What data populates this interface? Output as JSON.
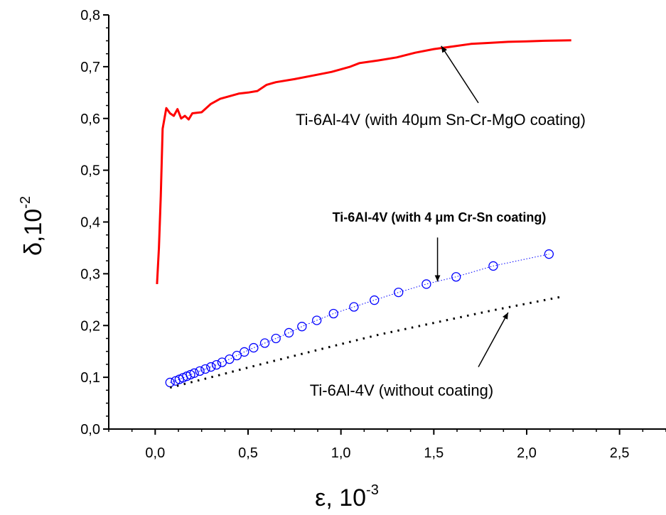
{
  "chart_data": {
    "type": "line",
    "x_axis": {
      "symbol": "ε, 10",
      "exponent": "-3",
      "xlim": [
        -0.25,
        2.75
      ],
      "ticks": [
        "0,0",
        "0,5",
        "1,0",
        "1,5",
        "2,0",
        "2,5"
      ],
      "tick_values": [
        0,
        0.5,
        1.0,
        1.5,
        2.0,
        2.5
      ]
    },
    "y_axis": {
      "symbol": "δ,10",
      "exponent": "-2",
      "ylim": [
        0,
        0.8
      ],
      "ticks": [
        "0,0",
        "0,1",
        "0,2",
        "0,3",
        "0,4",
        "0,5",
        "0,6",
        "0,7",
        "0,8"
      ],
      "tick_values": [
        0,
        0.1,
        0.2,
        0.3,
        0.4,
        0.5,
        0.6,
        0.7,
        0.8
      ]
    },
    "series": [
      {
        "name": "Ti-6Al-4V (with 40μm Sn-Cr-MgO coating)",
        "style": "solid-line",
        "color": "#ff0000",
        "points": [
          [
            0.01,
            0.28
          ],
          [
            0.02,
            0.35
          ],
          [
            0.03,
            0.45
          ],
          [
            0.04,
            0.58
          ],
          [
            0.06,
            0.62
          ],
          [
            0.08,
            0.61
          ],
          [
            0.1,
            0.605
          ],
          [
            0.12,
            0.618
          ],
          [
            0.14,
            0.6
          ],
          [
            0.16,
            0.605
          ],
          [
            0.18,
            0.598
          ],
          [
            0.2,
            0.61
          ],
          [
            0.25,
            0.612
          ],
          [
            0.3,
            0.628
          ],
          [
            0.35,
            0.638
          ],
          [
            0.4,
            0.643
          ],
          [
            0.45,
            0.648
          ],
          [
            0.5,
            0.65
          ],
          [
            0.55,
            0.653
          ],
          [
            0.6,
            0.665
          ],
          [
            0.65,
            0.67
          ],
          [
            0.75,
            0.676
          ],
          [
            0.85,
            0.683
          ],
          [
            0.95,
            0.69
          ],
          [
            1.05,
            0.7
          ],
          [
            1.1,
            0.707
          ],
          [
            1.2,
            0.712
          ],
          [
            1.3,
            0.718
          ],
          [
            1.4,
            0.727
          ],
          [
            1.5,
            0.734
          ],
          [
            1.6,
            0.739
          ],
          [
            1.7,
            0.744
          ],
          [
            1.8,
            0.746
          ],
          [
            1.9,
            0.748
          ],
          [
            2.0,
            0.749
          ],
          [
            2.1,
            0.75
          ],
          [
            2.24,
            0.751
          ]
        ]
      },
      {
        "name": "Ti-6Al-4V (with 4 μm Cr-Sn coating)",
        "style": "circles-dotted",
        "color": "#0000ff",
        "points": [
          [
            0.08,
            0.09
          ],
          [
            0.11,
            0.093
          ],
          [
            0.13,
            0.096
          ],
          [
            0.15,
            0.099
          ],
          [
            0.17,
            0.102
          ],
          [
            0.19,
            0.105
          ],
          [
            0.21,
            0.108
          ],
          [
            0.24,
            0.112
          ],
          [
            0.27,
            0.116
          ],
          [
            0.3,
            0.12
          ],
          [
            0.33,
            0.124
          ],
          [
            0.36,
            0.129
          ],
          [
            0.4,
            0.135
          ],
          [
            0.44,
            0.142
          ],
          [
            0.48,
            0.149
          ],
          [
            0.53,
            0.157
          ],
          [
            0.59,
            0.166
          ],
          [
            0.65,
            0.175
          ],
          [
            0.72,
            0.186
          ],
          [
            0.79,
            0.198
          ],
          [
            0.87,
            0.21
          ],
          [
            0.96,
            0.223
          ],
          [
            1.07,
            0.236
          ],
          [
            1.18,
            0.249
          ],
          [
            1.31,
            0.264
          ],
          [
            1.46,
            0.28
          ],
          [
            1.62,
            0.294
          ],
          [
            1.82,
            0.315
          ],
          [
            2.12,
            0.338
          ]
        ]
      },
      {
        "name": "Ti-6Al-4V (without coating)",
        "style": "dotted",
        "color": "#000000",
        "points": [
          [
            0.08,
            0.08
          ],
          [
            0.3,
            0.1
          ],
          [
            0.6,
            0.128
          ],
          [
            0.9,
            0.155
          ],
          [
            1.2,
            0.182
          ],
          [
            1.5,
            0.205
          ],
          [
            1.8,
            0.228
          ],
          [
            2.18,
            0.255
          ]
        ]
      }
    ],
    "annotations": [
      {
        "text": "Ti-6Al-4V (with 40μm Sn-Cr-MgO coating)",
        "bold": false,
        "arrow_to": [
          1.54,
          0.74
        ],
        "arrow_from": [
          1.74,
          0.63
        ]
      },
      {
        "text": "Ti-6Al-4V (with 4 μm Cr-Sn coating)",
        "bold": true,
        "arrow_to": [
          1.52,
          0.285
        ],
        "arrow_from": [
          1.52,
          0.37
        ]
      },
      {
        "text": "Ti-6Al-4V (without coating)",
        "bold": false,
        "arrow_to": [
          1.9,
          0.225
        ],
        "arrow_from": [
          1.74,
          0.12
        ]
      }
    ],
    "grid": false,
    "legend": "none"
  }
}
